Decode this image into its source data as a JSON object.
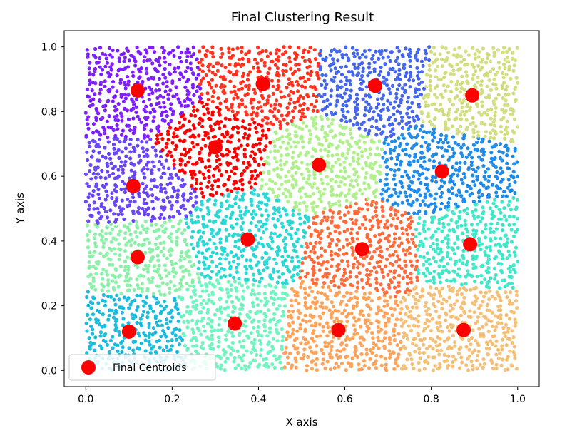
{
  "chart_data": {
    "type": "scatter",
    "title": "Final Clustering Result",
    "xlabel": "X axis",
    "ylabel": "Y axis",
    "xlim": [
      -0.05,
      1.05
    ],
    "ylim": [
      -0.05,
      1.05
    ],
    "xticks": [
      0.0,
      0.2,
      0.4,
      0.6,
      0.8,
      1.0
    ],
    "yticks": [
      0.0,
      0.2,
      0.4,
      0.6,
      0.8,
      1.0
    ],
    "tick_labels_x": [
      "0.0",
      "0.2",
      "0.4",
      "0.6",
      "0.8",
      "1.0"
    ],
    "tick_labels_y": [
      "0.0",
      "0.2",
      "0.4",
      "0.6",
      "0.8",
      "1.0"
    ],
    "grid": false,
    "legend": {
      "position": "lower-left",
      "entries": [
        "Final Centroids"
      ]
    },
    "centroid_color": "#ff0000",
    "clusters": [
      {
        "color": "#7f1fff",
        "centroid": [
          0.12,
          0.865
        ]
      },
      {
        "color": "#ff3320",
        "centroid": [
          0.41,
          0.885
        ]
      },
      {
        "color": "#4467ee",
        "centroid": [
          0.67,
          0.88
        ]
      },
      {
        "color": "#d2de80",
        "centroid": [
          0.895,
          0.85
        ]
      },
      {
        "color": "#ff0000",
        "centroid": [
          0.3,
          0.69
        ]
      },
      {
        "color": "#b0f08c",
        "centroid": [
          0.54,
          0.635
        ]
      },
      {
        "color": "#1f8cea",
        "centroid": [
          0.825,
          0.615
        ]
      },
      {
        "color": "#6b46f8",
        "centroid": [
          0.11,
          0.57
        ]
      },
      {
        "color": "#2ad8d6",
        "centroid": [
          0.375,
          0.405
        ]
      },
      {
        "color": "#ff6c3c",
        "centroid": [
          0.64,
          0.375
        ]
      },
      {
        "color": "#3ee8c8",
        "centroid": [
          0.89,
          0.39
        ]
      },
      {
        "color": "#8cf0a8",
        "centroid": [
          0.12,
          0.35
        ]
      },
      {
        "color": "#1cbcde",
        "centroid": [
          0.1,
          0.12
        ]
      },
      {
        "color": "#70f4c0",
        "centroid": [
          0.345,
          0.145
        ]
      },
      {
        "color": "#ffa35a",
        "centroid": [
          0.585,
          0.125
        ]
      },
      {
        "color": "#f4c078",
        "centroid": [
          0.875,
          0.125
        ]
      }
    ]
  }
}
